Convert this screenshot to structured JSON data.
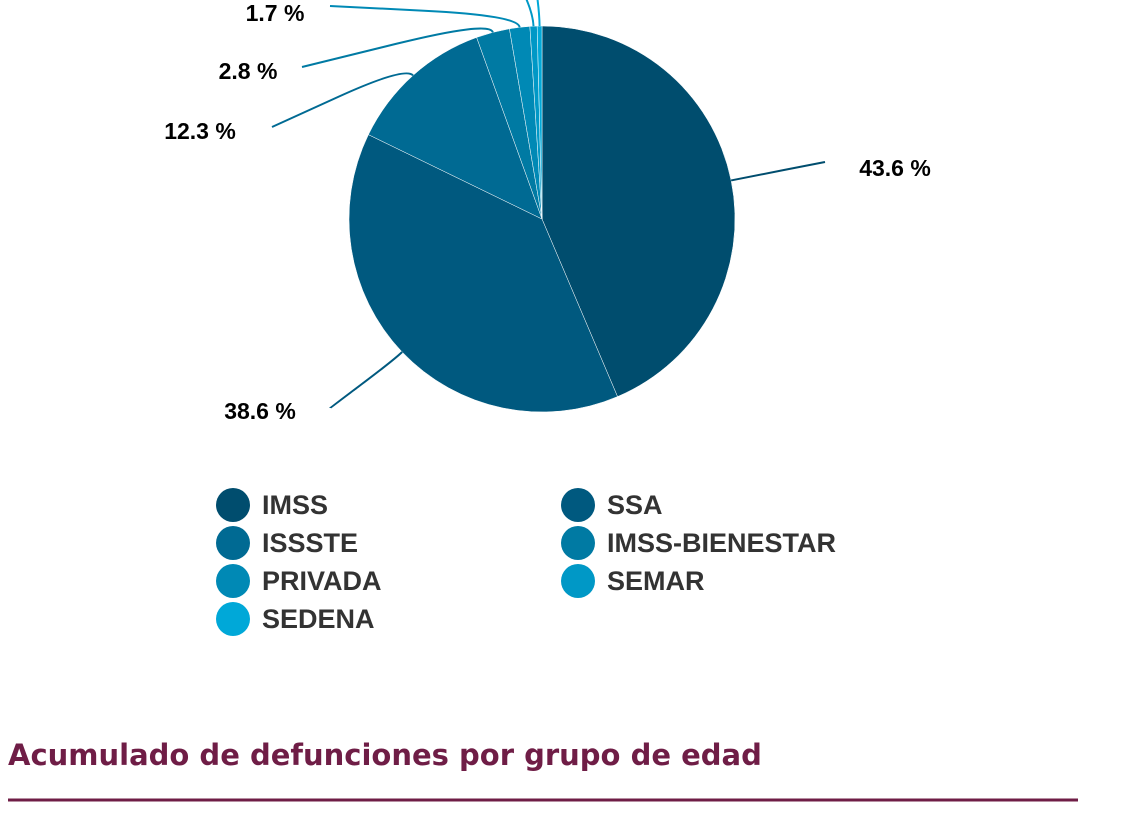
{
  "chart_data": {
    "type": "pie",
    "categories": [
      "IMSS",
      "SSA",
      "ISSSTE",
      "IMSS-BIENESTAR",
      "PRIVADA",
      "SEMAR",
      "SEDENA"
    ],
    "values": [
      43.6,
      38.6,
      12.3,
      2.8,
      1.7,
      0.6,
      0.4
    ],
    "value_labels": [
      "43.6 %",
      "38.6 %",
      "12.3 %",
      "2.8 %",
      "1.7 %",
      null,
      null
    ],
    "colors": [
      "#004d6e",
      "#00597f",
      "#006a93",
      "#007aa3",
      "#0089b5",
      "#0098c6",
      "#00a8d8"
    ],
    "legend": "bottom"
  },
  "section_title": "Acumulado de defunciones por grupo de edad"
}
